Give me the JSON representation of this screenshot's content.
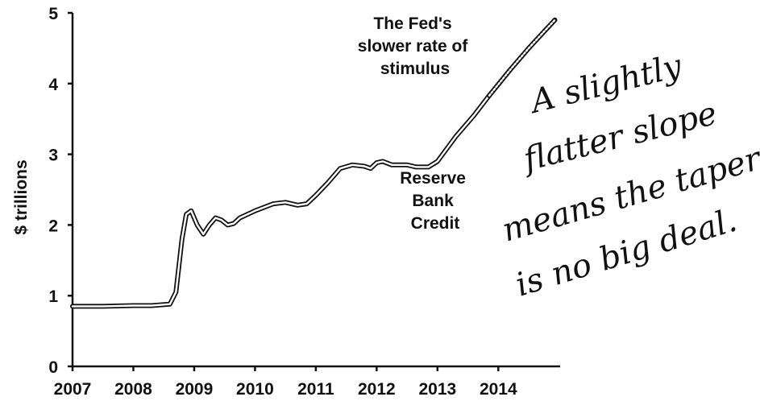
{
  "chart_data": {
    "type": "line",
    "ylabel": "$ trillions",
    "ylim": [
      0,
      5
    ],
    "xlim": [
      2007,
      2014.95
    ],
    "y_ticks": [
      0,
      1,
      2,
      3,
      4,
      5
    ],
    "x_ticks": [
      2007,
      2008,
      2009,
      2010,
      2011,
      2012,
      2013,
      2014
    ],
    "grid": false,
    "series": [
      {
        "name": "Reserve Bank Credit",
        "style": "double-line",
        "points": [
          [
            2007.0,
            0.85
          ],
          [
            2007.5,
            0.85
          ],
          [
            2008.0,
            0.86
          ],
          [
            2008.3,
            0.86
          ],
          [
            2008.6,
            0.88
          ],
          [
            2008.7,
            1.05
          ],
          [
            2008.8,
            1.8
          ],
          [
            2008.87,
            2.15
          ],
          [
            2008.95,
            2.2
          ],
          [
            2009.05,
            2.0
          ],
          [
            2009.15,
            1.87
          ],
          [
            2009.25,
            2.0
          ],
          [
            2009.35,
            2.1
          ],
          [
            2009.45,
            2.07
          ],
          [
            2009.55,
            2.0
          ],
          [
            2009.65,
            2.02
          ],
          [
            2009.75,
            2.1
          ],
          [
            2010.0,
            2.2
          ],
          [
            2010.3,
            2.3
          ],
          [
            2010.5,
            2.32
          ],
          [
            2010.7,
            2.28
          ],
          [
            2010.85,
            2.3
          ],
          [
            2011.0,
            2.42
          ],
          [
            2011.2,
            2.6
          ],
          [
            2011.4,
            2.8
          ],
          [
            2011.6,
            2.85
          ],
          [
            2011.8,
            2.83
          ],
          [
            2011.9,
            2.8
          ],
          [
            2012.0,
            2.88
          ],
          [
            2012.1,
            2.9
          ],
          [
            2012.25,
            2.85
          ],
          [
            2012.5,
            2.85
          ],
          [
            2012.65,
            2.82
          ],
          [
            2012.85,
            2.82
          ],
          [
            2013.0,
            2.9
          ],
          [
            2013.3,
            3.25
          ],
          [
            2013.6,
            3.55
          ],
          [
            2013.85,
            3.83
          ]
        ]
      },
      {
        "name": "The Fed's slower rate of stimulus",
        "style": "dotted-double-line",
        "points": [
          [
            2013.85,
            3.83
          ],
          [
            2014.2,
            4.2
          ],
          [
            2014.5,
            4.5
          ],
          [
            2014.8,
            4.78
          ],
          [
            2014.93,
            4.9
          ]
        ]
      }
    ],
    "annotations": {
      "taper_lines": [
        "The Fed's",
        "slower rate of",
        "stimulus"
      ],
      "series_lines": [
        "Reserve",
        "Bank",
        "Credit"
      ]
    },
    "handwritten_note": [
      "A slightly",
      "flatter slope",
      "means the taper",
      "is no big deal."
    ]
  }
}
